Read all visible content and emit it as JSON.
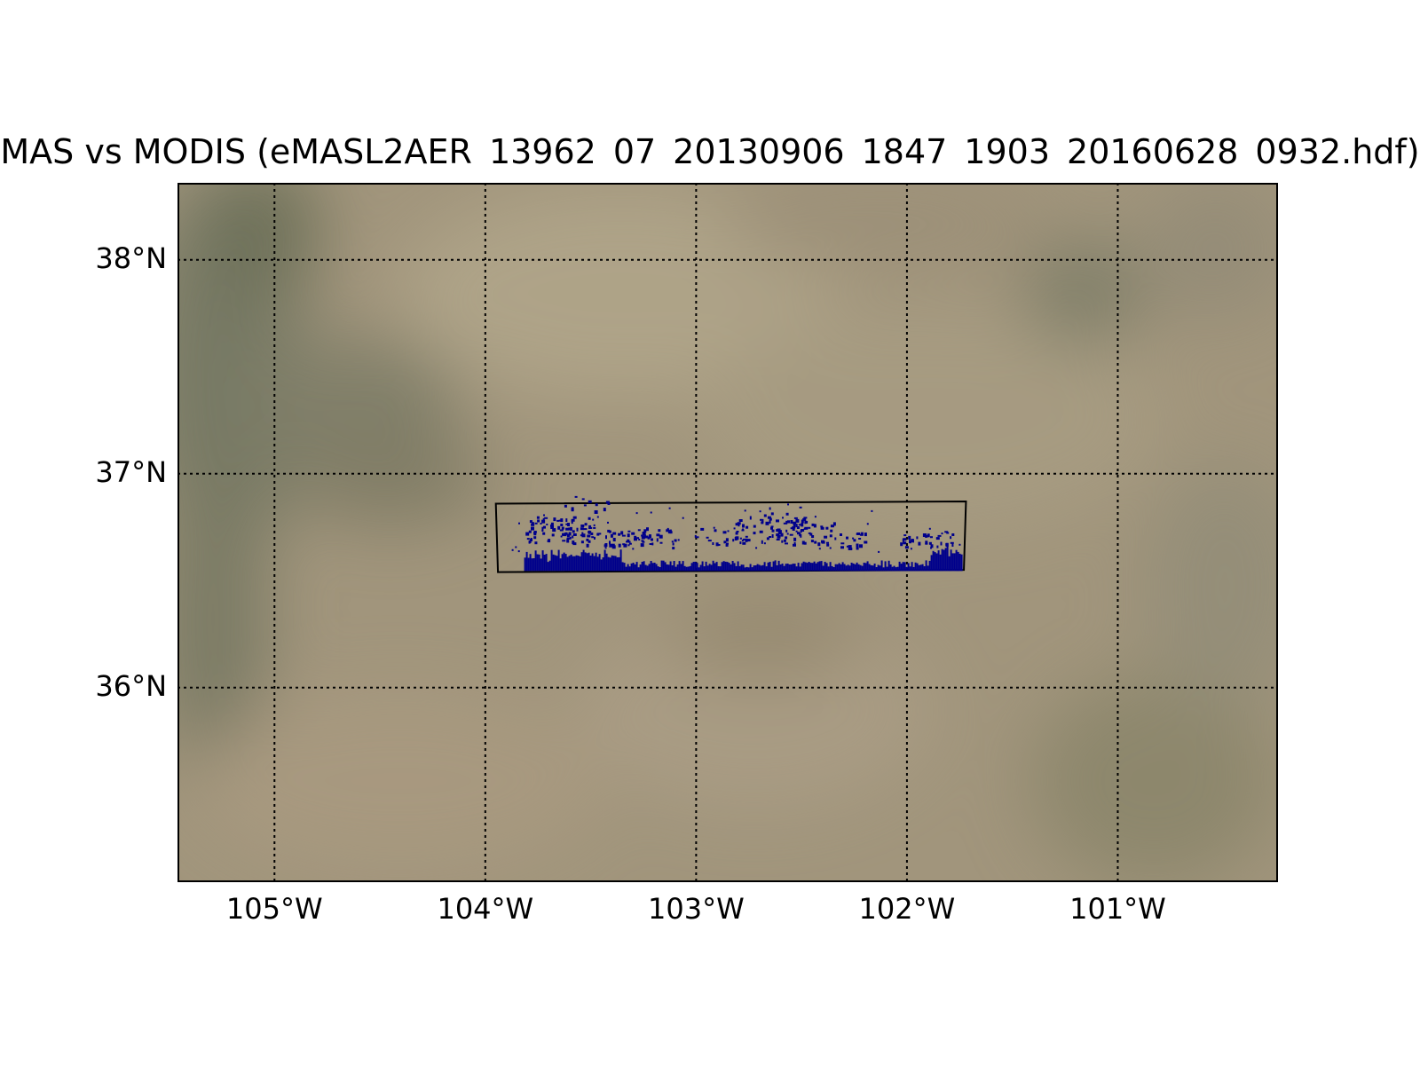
{
  "title": "MAS vs MODIS (eMASL2AER_13962_07_20130906_1847_1903_20160628_0932.hdf)",
  "map": {
    "projection": "cylindrical",
    "lon_range": [
      -105.46,
      -100.24
    ],
    "lat_range": [
      35.09,
      38.36
    ],
    "background": "satellite true-color imagery (semi-arid terrain)",
    "gridlines": "dotted",
    "lat_labels": [
      "38°N",
      "37°N",
      "36°N"
    ],
    "lon_labels": [
      "105°W",
      "104°W",
      "103°W",
      "102°W",
      "101°W"
    ],
    "lat_ticks": [
      38,
      37,
      36
    ],
    "lon_ticks": [
      -105,
      -104,
      -103,
      -102,
      -101
    ],
    "swath_outline": {
      "corners": [
        [
          -103.95,
          36.86
        ],
        [
          -101.72,
          36.87
        ],
        [
          -101.73,
          36.55
        ],
        [
          -103.94,
          36.54
        ]
      ],
      "color": "#000000"
    },
    "pixel_color": "#00008b"
  }
}
